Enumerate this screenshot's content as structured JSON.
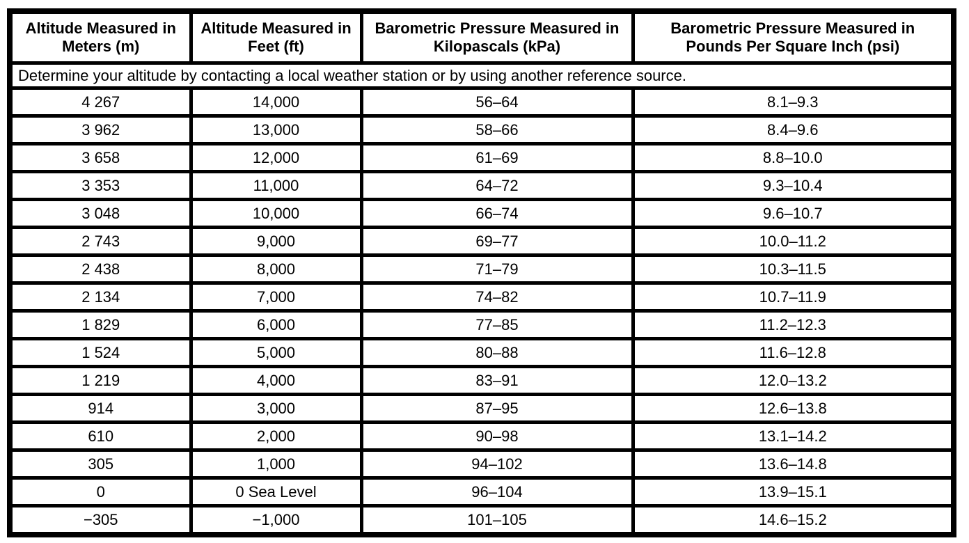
{
  "colors": {
    "border": "#000000",
    "background": "#ffffff",
    "text": "#000000"
  },
  "table": {
    "headers": [
      "Altitude Measured in Meters (m)",
      "Altitude Measured in Feet (ft)",
      "Barometric Pressure Measured in Kilopascals (kPa)",
      "Barometric Pressure Measured in Pounds Per Square Inch (psi)"
    ],
    "note": "Determine your altitude by contacting a local weather station or by using another reference source.",
    "row_keys": [
      "meters",
      "feet",
      "kpa",
      "psi"
    ],
    "rows": [
      {
        "meters": "4 267",
        "feet": "14,000",
        "kpa": "56–64",
        "psi": "8.1–9.3"
      },
      {
        "meters": "3 962",
        "feet": "13,000",
        "kpa": "58–66",
        "psi": "8.4–9.6"
      },
      {
        "meters": "3 658",
        "feet": "12,000",
        "kpa": "61–69",
        "psi": "8.8–10.0"
      },
      {
        "meters": "3 353",
        "feet": "11,000",
        "kpa": "64–72",
        "psi": "9.3–10.4"
      },
      {
        "meters": "3 048",
        "feet": "10,000",
        "kpa": "66–74",
        "psi": "9.6–10.7"
      },
      {
        "meters": "2 743",
        "feet": "9,000",
        "kpa": "69–77",
        "psi": "10.0–11.2"
      },
      {
        "meters": "2 438",
        "feet": "8,000",
        "kpa": "71–79",
        "psi": "10.3–11.5"
      },
      {
        "meters": "2 134",
        "feet": "7,000",
        "kpa": "74–82",
        "psi": "10.7–11.9"
      },
      {
        "meters": "1 829",
        "feet": "6,000",
        "kpa": "77–85",
        "psi": "11.2–12.3"
      },
      {
        "meters": "1 524",
        "feet": "5,000",
        "kpa": "80–88",
        "psi": "11.6–12.8"
      },
      {
        "meters": "1 219",
        "feet": "4,000",
        "kpa": "83–91",
        "psi": "12.0–13.2"
      },
      {
        "meters": "914",
        "feet": "3,000",
        "kpa": "87–95",
        "psi": "12.6–13.8"
      },
      {
        "meters": "610",
        "feet": "2,000",
        "kpa": "90–98",
        "psi": "13.1–14.2"
      },
      {
        "meters": "305",
        "feet": "1,000",
        "kpa": "94–102",
        "psi": "13.6–14.8"
      },
      {
        "meters": "0",
        "feet": "0 Sea Level",
        "kpa": "96–104",
        "psi": "13.9–15.1"
      },
      {
        "meters": "−305",
        "feet": "−1,000",
        "kpa": "101–105",
        "psi": "14.6–15.2"
      }
    ]
  }
}
